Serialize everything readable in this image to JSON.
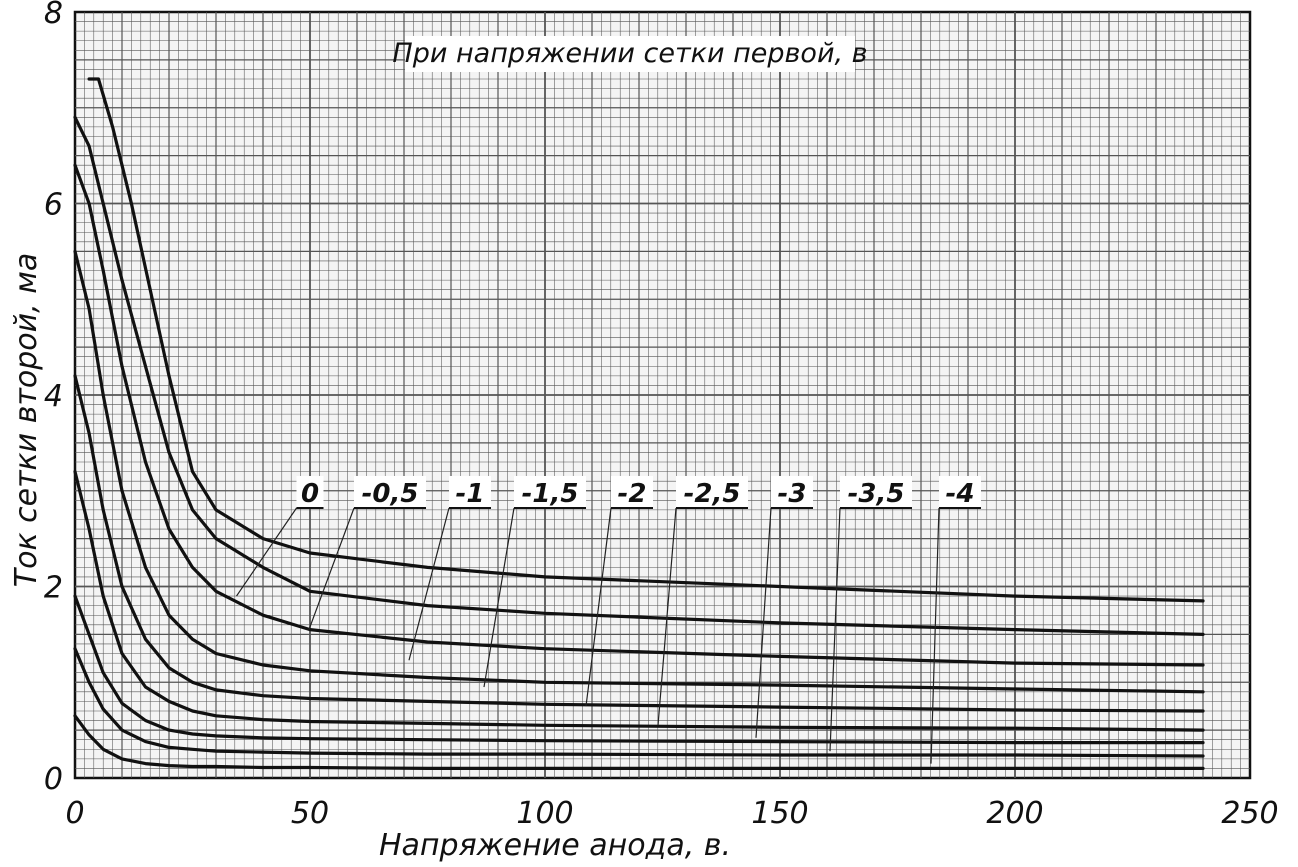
{
  "chart_data": {
    "type": "line",
    "title": "При напряжении сетки первой, в",
    "xlabel": "Напряжение анода, в.",
    "ylabel": "Ток сетки второй, ма",
    "xlim": [
      0,
      250
    ],
    "ylim": [
      0,
      8
    ],
    "xticks": [
      0,
      50,
      100,
      150,
      200,
      250
    ],
    "yticks": [
      0,
      2,
      4,
      6,
      8
    ],
    "x_tick_labels": [
      "0",
      "50",
      "100",
      "150",
      "200",
      "250"
    ],
    "y_tick_labels": [
      "0",
      "2",
      "4",
      "6",
      "8"
    ],
    "grid": true,
    "series_color": "#111111",
    "grid_color": "#555555",
    "series": [
      {
        "name": "0",
        "x": [
          3,
          5,
          8,
          12,
          16,
          20,
          25,
          30,
          40,
          50,
          75,
          100,
          150,
          200,
          240
        ],
        "y": [
          7.3,
          7.3,
          6.8,
          6.0,
          5.1,
          4.2,
          3.2,
          2.8,
          2.5,
          2.35,
          2.2,
          2.1,
          2.0,
          1.9,
          1.85
        ]
      },
      {
        "name": "-0,5",
        "x": [
          0,
          3,
          6,
          10,
          15,
          20,
          25,
          30,
          40,
          50,
          75,
          100,
          150,
          200,
          240
        ],
        "y": [
          6.9,
          6.6,
          6.0,
          5.2,
          4.3,
          3.4,
          2.8,
          2.5,
          2.2,
          1.95,
          1.8,
          1.72,
          1.62,
          1.55,
          1.5
        ]
      },
      {
        "name": "-1",
        "x": [
          0,
          3,
          6,
          10,
          15,
          20,
          25,
          30,
          40,
          50,
          75,
          100,
          150,
          200,
          240
        ],
        "y": [
          6.4,
          6.0,
          5.3,
          4.3,
          3.3,
          2.6,
          2.2,
          1.95,
          1.7,
          1.55,
          1.42,
          1.35,
          1.27,
          1.2,
          1.18
        ]
      },
      {
        "name": "-1,5",
        "x": [
          0,
          3,
          6,
          10,
          15,
          20,
          25,
          30,
          40,
          50,
          75,
          100,
          150,
          200,
          240
        ],
        "y": [
          5.5,
          4.9,
          4.0,
          3.0,
          2.2,
          1.7,
          1.45,
          1.3,
          1.18,
          1.12,
          1.05,
          1.0,
          0.97,
          0.93,
          0.9
        ]
      },
      {
        "name": "-2",
        "x": [
          0,
          3,
          6,
          10,
          15,
          20,
          25,
          30,
          40,
          50,
          75,
          100,
          150,
          200,
          240
        ],
        "y": [
          4.2,
          3.6,
          2.8,
          2.0,
          1.45,
          1.15,
          1.0,
          0.92,
          0.86,
          0.83,
          0.8,
          0.77,
          0.74,
          0.71,
          0.7
        ]
      },
      {
        "name": "-2,5",
        "x": [
          0,
          3,
          6,
          10,
          15,
          20,
          25,
          30,
          40,
          50,
          75,
          100,
          150,
          200,
          240
        ],
        "y": [
          3.2,
          2.6,
          1.9,
          1.3,
          0.95,
          0.8,
          0.7,
          0.65,
          0.61,
          0.59,
          0.57,
          0.55,
          0.53,
          0.52,
          0.5
        ]
      },
      {
        "name": "-3",
        "x": [
          0,
          3,
          6,
          10,
          15,
          20,
          25,
          30,
          40,
          50,
          75,
          100,
          150,
          200,
          240
        ],
        "y": [
          1.9,
          1.5,
          1.1,
          0.78,
          0.6,
          0.5,
          0.46,
          0.44,
          0.42,
          0.41,
          0.4,
          0.39,
          0.38,
          0.37,
          0.37
        ]
      },
      {
        "name": "-3,5",
        "x": [
          0,
          3,
          6,
          10,
          15,
          20,
          25,
          30,
          40,
          50,
          75,
          100,
          150,
          200,
          240
        ],
        "y": [
          1.35,
          1.0,
          0.72,
          0.5,
          0.38,
          0.32,
          0.3,
          0.28,
          0.27,
          0.26,
          0.25,
          0.25,
          0.24,
          0.24,
          0.23
        ]
      },
      {
        "name": "-4",
        "x": [
          0,
          3,
          6,
          10,
          15,
          20,
          25,
          30,
          40,
          50,
          75,
          100,
          150,
          200,
          240
        ],
        "y": [
          0.65,
          0.45,
          0.3,
          0.2,
          0.15,
          0.13,
          0.12,
          0.12,
          0.11,
          0.11,
          0.1,
          0.1,
          0.1,
          0.1,
          0.1
        ]
      }
    ]
  }
}
